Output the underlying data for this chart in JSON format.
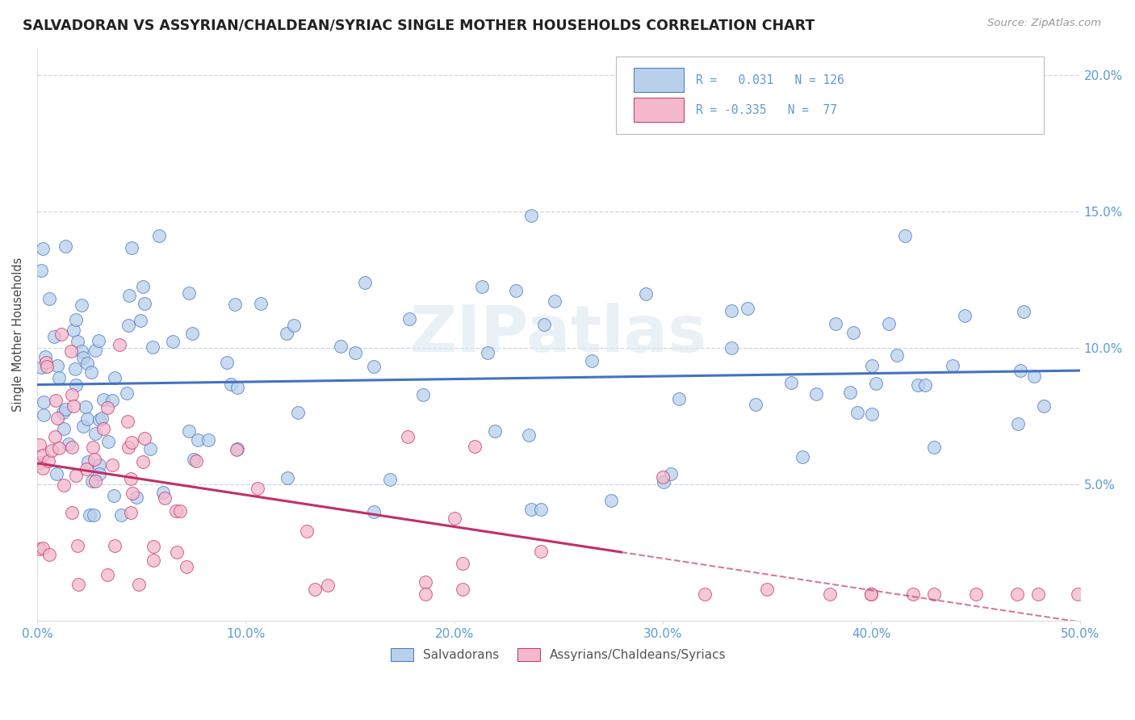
{
  "title": "SALVADORAN VS ASSYRIAN/CHALDEAN/SYRIAC SINGLE MOTHER HOUSEHOLDS CORRELATION CHART",
  "source": "Source: ZipAtlas.com",
  "ylabel": "Single Mother Households",
  "xlim": [
    0.0,
    0.5
  ],
  "ylim": [
    0.0,
    0.21
  ],
  "xticks": [
    0.0,
    0.1,
    0.2,
    0.3,
    0.4,
    0.5
  ],
  "xticklabels": [
    "0.0%",
    "10.0%",
    "20.0%",
    "30.0%",
    "40.0%",
    "50.0%"
  ],
  "yticks": [
    0.05,
    0.1,
    0.15,
    0.2
  ],
  "yticklabels": [
    "5.0%",
    "10.0%",
    "15.0%",
    "20.0%"
  ],
  "blue_R": 0.031,
  "blue_N": 126,
  "pink_R": -0.335,
  "pink_N": 77,
  "blue_fill": "#b8d0ea",
  "pink_fill": "#f4b8cc",
  "blue_edge": "#4472C4",
  "pink_edge": "#C0306A",
  "tick_color": "#5B9BD5",
  "grid_color": "#c8d8e8",
  "watermark": "ZIPatlas",
  "legend_label_blue": "Salvadorans",
  "legend_label_pink": "Assyrians/Chaldeans/Syriacs"
}
